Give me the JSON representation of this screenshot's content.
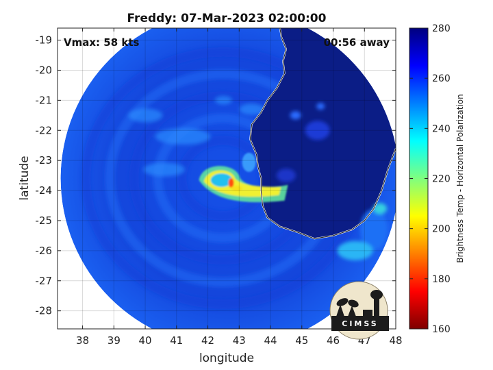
{
  "chart_data": {
    "type": "heatmap",
    "title": "Freddy: 07-Mar-2023 02:00:00",
    "annotations": {
      "vmax": "Vmax: 58 kts",
      "time_away": "00:56 away"
    },
    "xlabel": "longitude",
    "ylabel": "latitude",
    "xlim": [
      37.2,
      48.0
    ],
    "ylim": [
      -28.6,
      -18.6
    ],
    "x_ticks": [
      38,
      39,
      40,
      41,
      42,
      43,
      44,
      45,
      46,
      47,
      48
    ],
    "y_ticks": [
      -19,
      -20,
      -21,
      -22,
      -23,
      -24,
      -25,
      -26,
      -27,
      -28
    ],
    "grid": true,
    "colorbar": {
      "label": "Brightness Temp - Horizontal Polarization",
      "range": [
        160,
        280
      ],
      "ticks": [
        160,
        180,
        200,
        220,
        240,
        260,
        280
      ],
      "colormap": "jet",
      "position": "right"
    },
    "storm_center": {
      "lon": 42.7,
      "lat": -23.7
    },
    "swath_center": {
      "lon": 42.7,
      "lat": -23.6
    },
    "colors": {
      "land": "#0b1d86",
      "ocean_background": "#1a4fe0",
      "coastline": "#ffffff"
    },
    "logo_text": "CIMSS"
  }
}
